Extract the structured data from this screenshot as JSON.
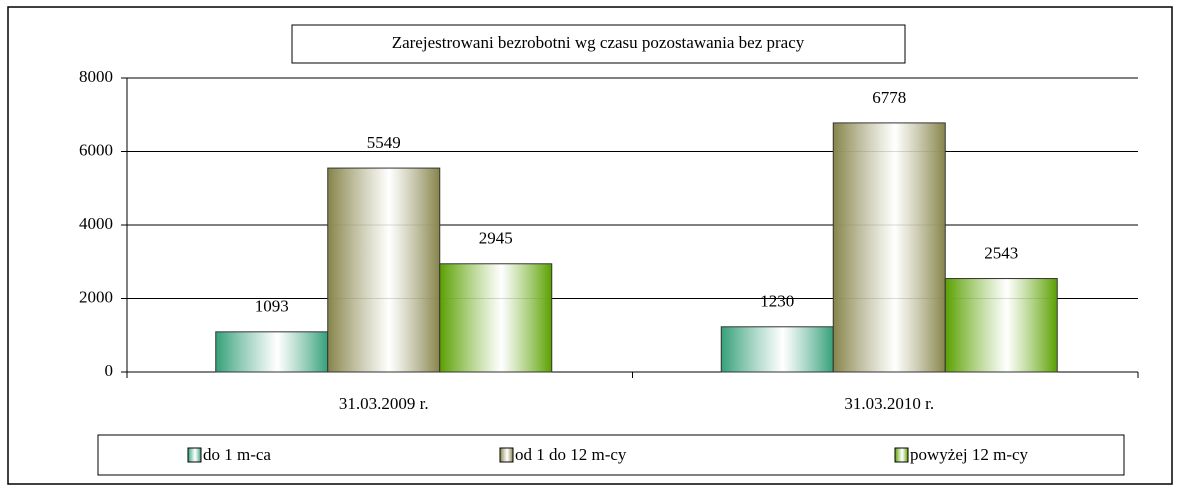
{
  "chart_data": {
    "type": "bar",
    "title": "Zarejestrowani bezrobotni wg czasu pozostawania bez pracy",
    "categories": [
      "31.03.2009 r.",
      "31.03.2010 r."
    ],
    "series": [
      {
        "name": "do 1 m-ca",
        "color": "#35a07a",
        "values": [
          1093,
          1230
        ]
      },
      {
        "name": "od 1 do 12 m-cy",
        "color": "#86844a",
        "values": [
          5549,
          6778
        ]
      },
      {
        "name": "powyżej 12 m-cy",
        "color": "#5aa000",
        "values": [
          2945,
          2543
        ]
      }
    ],
    "ylim": [
      0,
      8000
    ],
    "yticks": [
      0,
      2000,
      4000,
      6000,
      8000
    ],
    "grid": true,
    "legend": "bottom"
  }
}
